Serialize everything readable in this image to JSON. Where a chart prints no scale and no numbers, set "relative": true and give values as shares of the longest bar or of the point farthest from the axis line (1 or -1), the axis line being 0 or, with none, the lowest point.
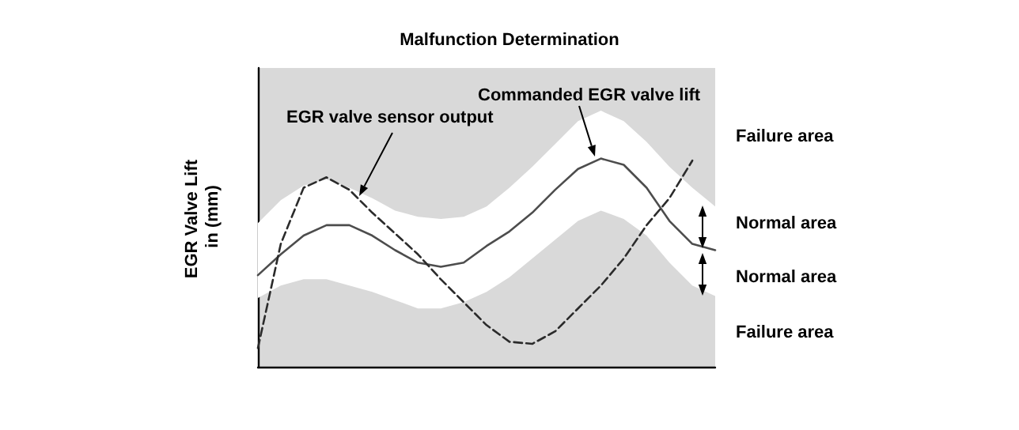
{
  "chart_data": {
    "type": "line",
    "title": "Malfunction Determination",
    "ylabel": "EGR Valve Lift in (mm)",
    "relative": true,
    "legend": false,
    "grid": false,
    "marker": "none",
    "categories": [
      null,
      null,
      null,
      null,
      null,
      null,
      null,
      null,
      null,
      null,
      null,
      null,
      null,
      null,
      null,
      null,
      null,
      null,
      null,
      null,
      null
    ],
    "series": [
      {
        "name": "Commanded EGR valve lift",
        "color": "#4d4d4d",
        "line_style": "solid",
        "values": [
          0.44,
          0.54,
          0.63,
          0.68,
          0.68,
          0.63,
          0.56,
          0.5,
          0.48,
          0.5,
          0.58,
          0.65,
          0.74,
          0.85,
          0.95,
          1.0,
          0.97,
          0.86,
          0.7,
          0.59,
          0.56
        ],
        "lower": [
          0.33,
          0.39,
          0.42,
          0.42,
          0.39,
          0.36,
          0.32,
          0.28,
          0.28,
          0.31,
          0.36,
          0.43,
          0.52,
          0.61,
          0.7,
          0.75,
          0.71,
          0.63,
          0.5,
          0.39,
          0.34
        ],
        "upper": [
          0.69,
          0.8,
          0.87,
          0.9,
          0.86,
          0.81,
          0.75,
          0.72,
          0.71,
          0.72,
          0.77,
          0.86,
          0.96,
          1.07,
          1.18,
          1.23,
          1.18,
          1.08,
          0.96,
          0.86,
          0.77
        ]
      },
      {
        "name": "EGR valve sensor output",
        "color": "#2b2b2b",
        "line_style": "dashed",
        "values": [
          0.09,
          0.59,
          0.86,
          0.91,
          0.85,
          0.74,
          0.64,
          0.54,
          0.42,
          0.31,
          0.2,
          0.12,
          0.11,
          0.17,
          0.28,
          0.39,
          0.52,
          0.68,
          0.81,
          0.99,
          null
        ]
      }
    ],
    "annotations": [
      "Failure area",
      "Normal area",
      "Normal area",
      "Failure area"
    ]
  }
}
